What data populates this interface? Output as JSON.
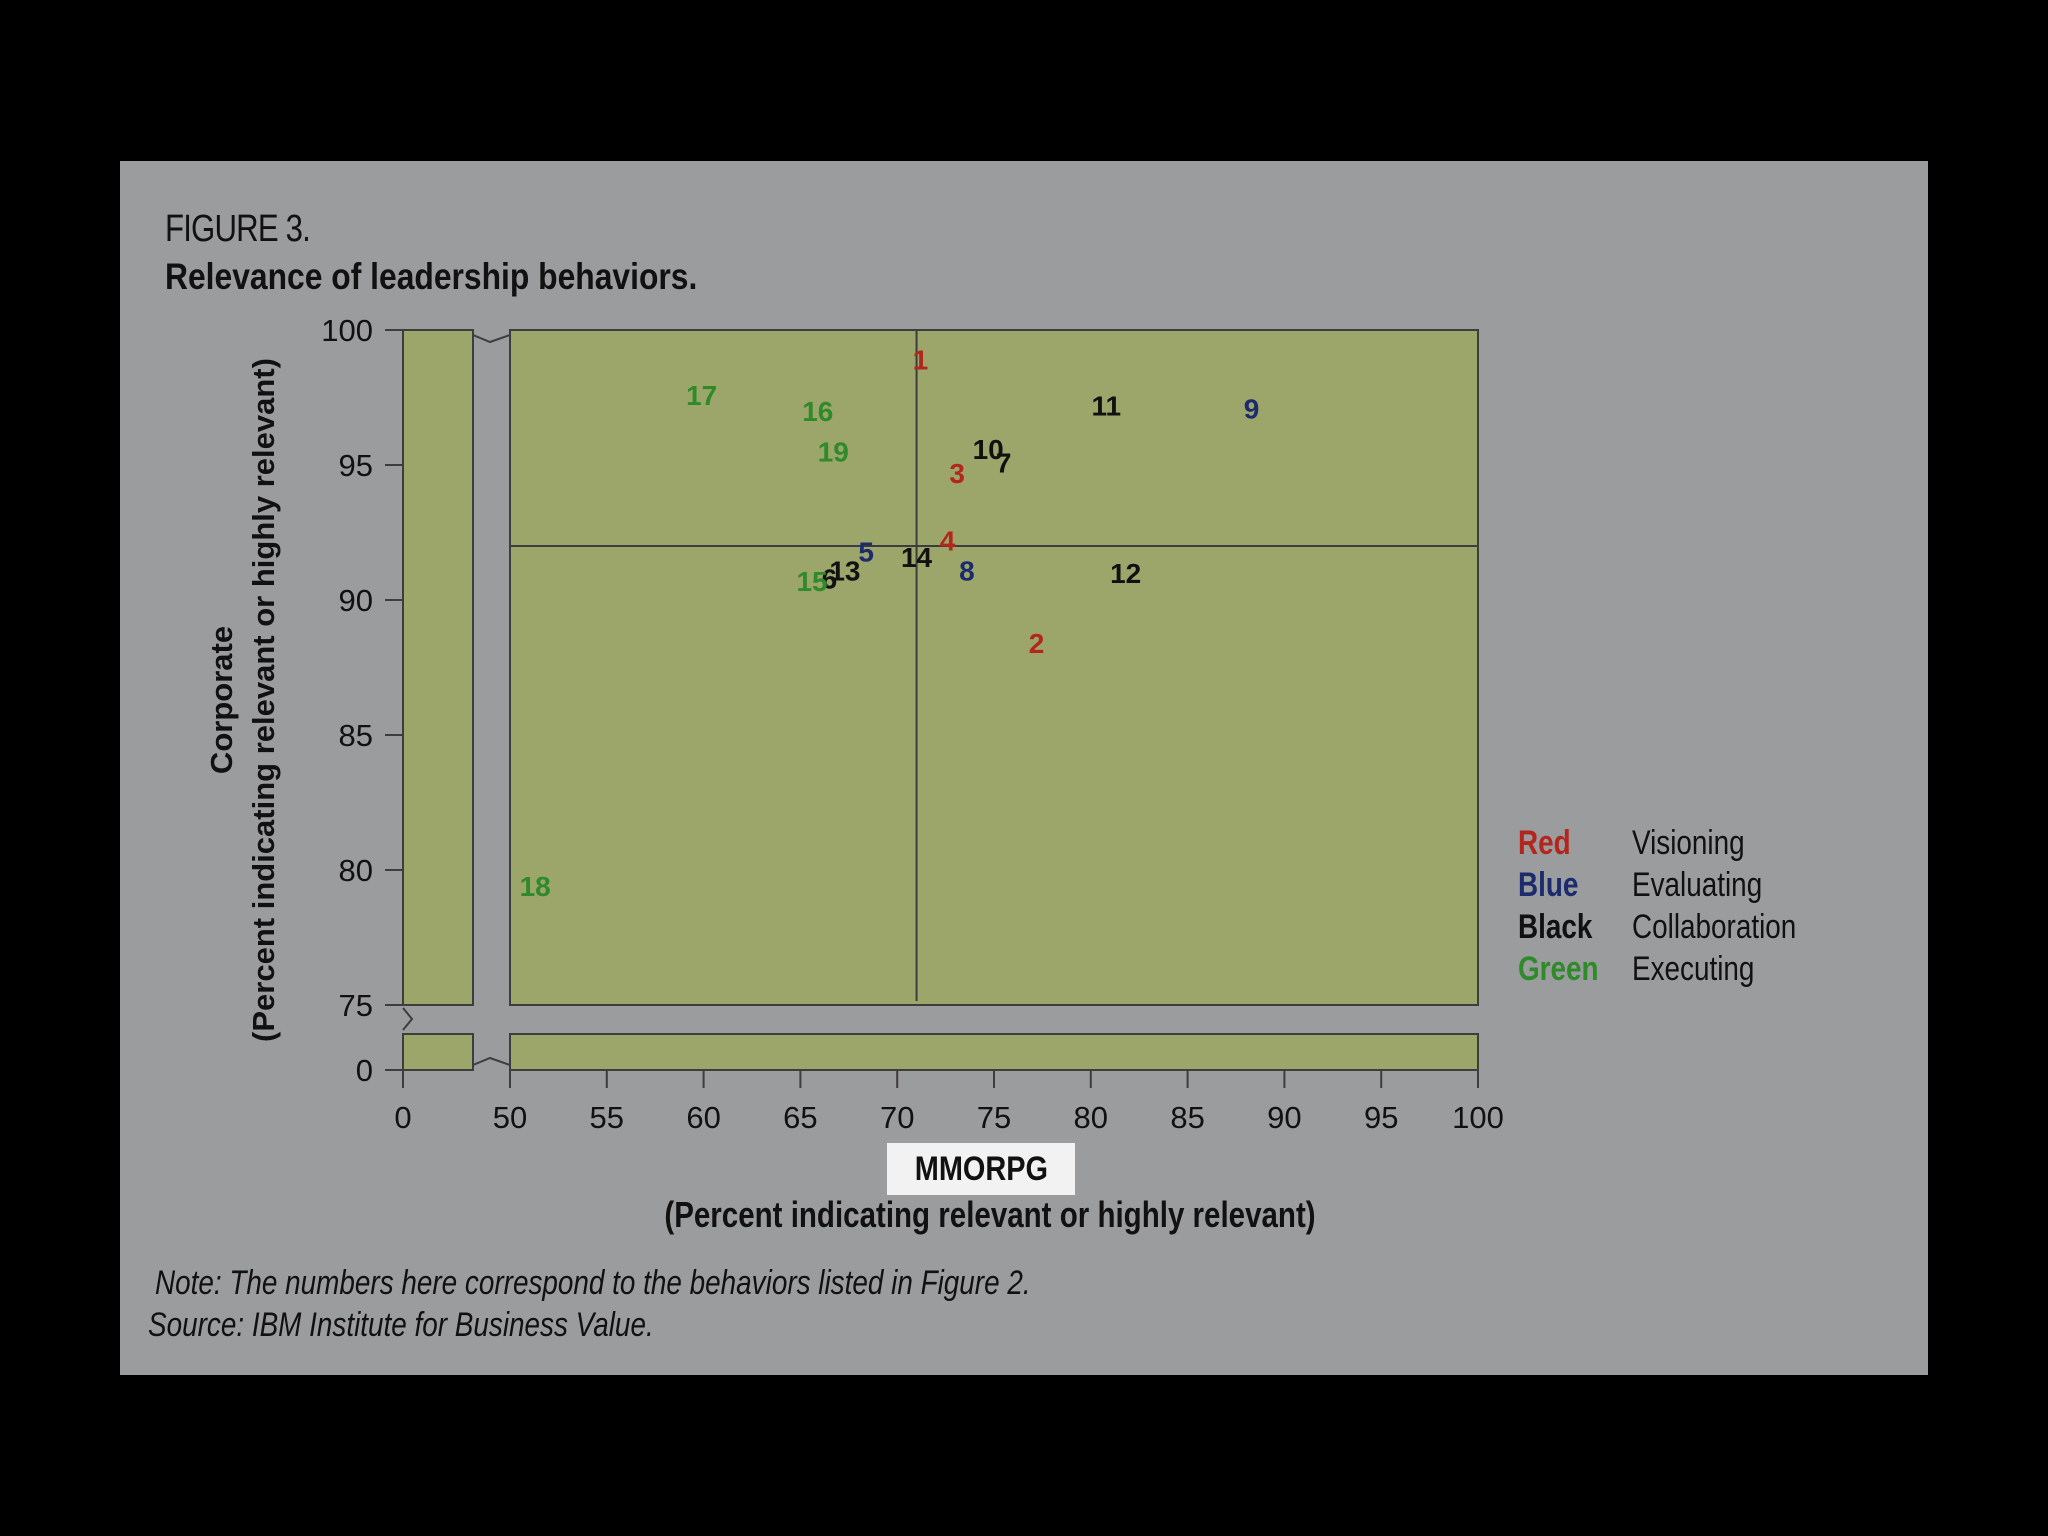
{
  "figure": {
    "label": "FIGURE 3.",
    "title": "Relevance of leadership behaviors.",
    "note": "Note: The numbers here correspond to the behaviors listed in Figure 2.",
    "source": "Source: IBM Institute for Business Value."
  },
  "colors": {
    "panel": "#9b9c9e",
    "plot_fill": "#9ca56a",
    "red": "#b3261e",
    "blue": "#1c2a6e",
    "black": "#111111",
    "green": "#2f8a2a"
  },
  "legend": [
    {
      "color_name": "Red",
      "category": "Visioning",
      "color_key": "red"
    },
    {
      "color_name": "Blue",
      "category": "Evaluating",
      "color_key": "blue"
    },
    {
      "color_name": "Black",
      "category": "Collaboration",
      "color_key": "black"
    },
    {
      "color_name": "Green",
      "category": "Executing",
      "color_key": "green"
    }
  ],
  "chart_data": {
    "type": "scatter",
    "title": "Relevance of leadership behaviors.",
    "xlabel_name": "MMORPG",
    "xlabel": "(Percent indicating relevant or highly relevant)",
    "ylabel_name": "Corporate",
    "ylabel": "(Percent indicating relevant or highly relevant)",
    "xlim": [
      50,
      100
    ],
    "ylim": [
      75,
      100
    ],
    "x_axis_break": "0 to 50",
    "y_axis_break": "0 to 75",
    "x_ticks": [
      "0",
      "50",
      "55",
      "60",
      "65",
      "70",
      "75",
      "80",
      "85",
      "90",
      "95",
      "100"
    ],
    "y_ticks": [
      "0",
      "75",
      "80",
      "85",
      "90",
      "95",
      "100"
    ],
    "reference_lines": {
      "x": 71,
      "y": 92
    },
    "grid": false,
    "legend_position": "right",
    "series": [
      {
        "name": "Visioning",
        "color_key": "red",
        "points": [
          {
            "label": "1",
            "x": 71.2,
            "y": 98.9
          },
          {
            "label": "2",
            "x": 77.2,
            "y": 88.4
          },
          {
            "label": "3",
            "x": 73.1,
            "y": 94.7
          },
          {
            "label": "4",
            "x": 72.6,
            "y": 92.2
          }
        ]
      },
      {
        "name": "Evaluating",
        "color_key": "blue",
        "points": [
          {
            "label": "5",
            "x": 68.4,
            "y": 91.8
          },
          {
            "label": "8",
            "x": 73.6,
            "y": 91.1
          },
          {
            "label": "9",
            "x": 88.3,
            "y": 97.1
          }
        ]
      },
      {
        "name": "Collaboration",
        "color_key": "black",
        "points": [
          {
            "label": "6",
            "x": 66.5,
            "y": 90.8
          },
          {
            "label": "7",
            "x": 75.5,
            "y": 95.1
          },
          {
            "label": "10",
            "x": 74.7,
            "y": 95.6
          },
          {
            "label": "11",
            "x": 80.8,
            "y": 97.2
          },
          {
            "label": "12",
            "x": 81.8,
            "y": 91.0
          },
          {
            "label": "13",
            "x": 67.3,
            "y": 91.1
          },
          {
            "label": "14",
            "x": 71.0,
            "y": 91.6
          }
        ]
      },
      {
        "name": "Executing",
        "color_key": "green",
        "points": [
          {
            "label": "15",
            "x": 65.6,
            "y": 90.7
          },
          {
            "label": "16",
            "x": 65.9,
            "y": 97.0
          },
          {
            "label": "17",
            "x": 59.9,
            "y": 97.6
          },
          {
            "label": "18",
            "x": 51.3,
            "y": 79.4
          },
          {
            "label": "19",
            "x": 66.7,
            "y": 95.5
          }
        ]
      }
    ]
  }
}
